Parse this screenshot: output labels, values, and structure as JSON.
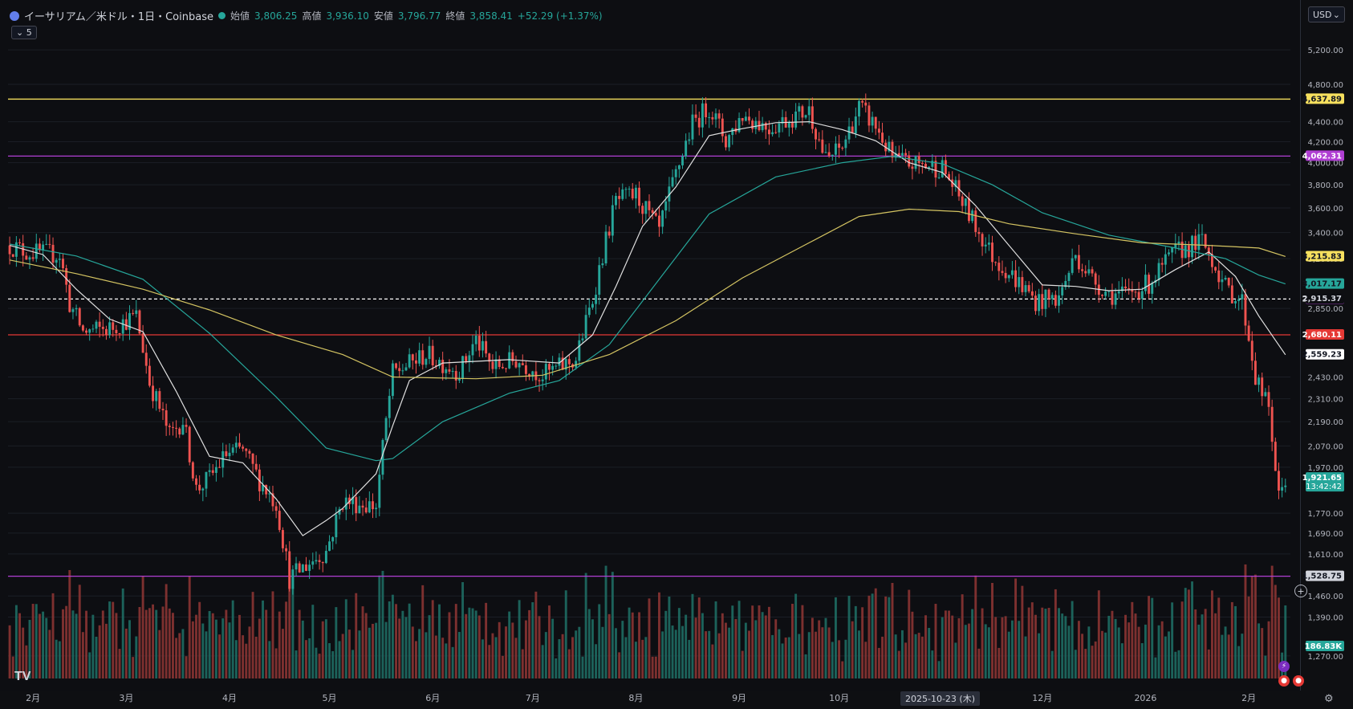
{
  "header": {
    "symbol": "イーサリアム／米ドル・1日・Coinbase",
    "open_label": "始値",
    "open": "3,806.25",
    "high_label": "高値",
    "high": "3,936.10",
    "low_label": "安値",
    "low": "3,796.77",
    "close_label": "終値",
    "close": "3,858.41",
    "change": "+52.29 (+1.37%)",
    "collapse_count": "5"
  },
  "currency": "USD",
  "date_tag": "2025-10-23 (木)",
  "logo": "TV",
  "colors": {
    "up": "#26a69a",
    "down": "#ef5350",
    "background": "#0d0e12",
    "ma_short": "#e0e0e0",
    "ma_mid": "#26a69a",
    "ma_long": "#d4c462",
    "line_yellow": "#f6e05e",
    "line_purple": "#b03fd3",
    "line_red": "#e53935",
    "line_white_dashed": "#ffffff"
  },
  "chart_data": {
    "type": "candlestick",
    "title": "イーサリアム／米ドル・1日・Coinbase",
    "y_scale": "log",
    "ylim": [
      1205,
      5420
    ],
    "y_ticks": [
      "5,200.00",
      "4,800.00",
      "4,400.00",
      "4,200.00",
      "4,000.00",
      "3,800.00",
      "3,600.00",
      "3,400.00",
      "3,200.00",
      "2,850.00",
      "2,430.00",
      "2,310.00",
      "2,190.00",
      "2,070.00",
      "1,970.00",
      "1,770.00",
      "1,690.00",
      "1,610.00",
      "1,460.00",
      "1,390.00",
      "1,270.00"
    ],
    "y_tick_values": [
      5200,
      4800,
      4400,
      4200,
      4000,
      3800,
      3600,
      3400,
      3200,
      2850,
      2430,
      2310,
      2190,
      2070,
      1970,
      1770,
      1690,
      1610,
      1460,
      1390,
      1270
    ],
    "x_labels": [
      "2月",
      "3月",
      "4月",
      "5月",
      "6月",
      "7月",
      "8月",
      "9月",
      "10月",
      "11月",
      "12月",
      "2026",
      "2月"
    ],
    "x_label_days": [
      7,
      35,
      66,
      96,
      127,
      157,
      188,
      219,
      249,
      280,
      310,
      341,
      372
    ],
    "day_count": 385,
    "price_path": [
      [
        0,
        3300
      ],
      [
        5,
        3250
      ],
      [
        15,
        3230
      ],
      [
        18,
        2880
      ],
      [
        22,
        2700
      ],
      [
        30,
        2720
      ],
      [
        38,
        2800
      ],
      [
        42,
        2400
      ],
      [
        48,
        2120
      ],
      [
        52,
        2200
      ],
      [
        56,
        1870
      ],
      [
        60,
        1920
      ],
      [
        65,
        2030
      ],
      [
        70,
        2050
      ],
      [
        75,
        1910
      ],
      [
        80,
        1810
      ],
      [
        84,
        1520
      ],
      [
        88,
        1560
      ],
      [
        95,
        1620
      ],
      [
        100,
        1820
      ],
      [
        110,
        1800
      ],
      [
        115,
        2450
      ],
      [
        125,
        2560
      ],
      [
        135,
        2460
      ],
      [
        140,
        2650
      ],
      [
        145,
        2480
      ],
      [
        152,
        2530
      ],
      [
        160,
        2440
      ],
      [
        170,
        2530
      ],
      [
        175,
        2910
      ],
      [
        182,
        3660
      ],
      [
        188,
        3710
      ],
      [
        195,
        3410
      ],
      [
        205,
        4380
      ],
      [
        210,
        4560
      ],
      [
        215,
        4210
      ],
      [
        220,
        4470
      ],
      [
        228,
        4340
      ],
      [
        235,
        4450
      ],
      [
        240,
        4520
      ],
      [
        245,
        4020
      ],
      [
        250,
        4150
      ],
      [
        255,
        4550
      ],
      [
        260,
        4350
      ],
      [
        265,
        4040
      ],
      [
        270,
        3990
      ],
      [
        275,
        3980
      ],
      [
        280,
        3950
      ],
      [
        285,
        3700
      ],
      [
        290,
        3450
      ],
      [
        295,
        3220
      ],
      [
        302,
        3050
      ],
      [
        308,
        2900
      ],
      [
        315,
        2920
      ],
      [
        320,
        3230
      ],
      [
        325,
        3050
      ],
      [
        330,
        2950
      ],
      [
        335,
        2940
      ],
      [
        342,
        3020
      ],
      [
        350,
        3250
      ],
      [
        358,
        3330
      ],
      [
        362,
        3150
      ],
      [
        365,
        2990
      ],
      [
        370,
        2900
      ],
      [
        374,
        2430
      ],
      [
        378,
        2250
      ],
      [
        381,
        1830
      ],
      [
        383,
        1921
      ]
    ],
    "moving_averages": [
      {
        "key": "ma_short",
        "path": [
          [
            0,
            3300
          ],
          [
            10,
            3230
          ],
          [
            20,
            2980
          ],
          [
            30,
            2780
          ],
          [
            40,
            2700
          ],
          [
            50,
            2350
          ],
          [
            60,
            2020
          ],
          [
            70,
            1990
          ],
          [
            80,
            1830
          ],
          [
            88,
            1680
          ],
          [
            95,
            1740
          ],
          [
            100,
            1790
          ],
          [
            110,
            1940
          ],
          [
            115,
            2170
          ],
          [
            120,
            2410
          ],
          [
            130,
            2510
          ],
          [
            140,
            2520
          ],
          [
            150,
            2530
          ],
          [
            165,
            2510
          ],
          [
            175,
            2680
          ],
          [
            182,
            3000
          ],
          [
            190,
            3450
          ],
          [
            200,
            3780
          ],
          [
            210,
            4260
          ],
          [
            220,
            4330
          ],
          [
            230,
            4390
          ],
          [
            240,
            4400
          ],
          [
            250,
            4320
          ],
          [
            260,
            4210
          ],
          [
            270,
            4000
          ],
          [
            280,
            3910
          ],
          [
            290,
            3620
          ],
          [
            300,
            3300
          ],
          [
            310,
            3010
          ],
          [
            320,
            3000
          ],
          [
            330,
            2970
          ],
          [
            340,
            2980
          ],
          [
            350,
            3120
          ],
          [
            360,
            3250
          ],
          [
            368,
            3070
          ],
          [
            375,
            2800
          ],
          [
            383,
            2559
          ]
        ]
      },
      {
        "key": "ma_mid",
        "path": [
          [
            0,
            3310
          ],
          [
            20,
            3220
          ],
          [
            40,
            3050
          ],
          [
            60,
            2690
          ],
          [
            80,
            2320
          ],
          [
            95,
            2060
          ],
          [
            110,
            2000
          ],
          [
            115,
            2010
          ],
          [
            130,
            2190
          ],
          [
            150,
            2340
          ],
          [
            165,
            2410
          ],
          [
            180,
            2620
          ],
          [
            195,
            3050
          ],
          [
            210,
            3550
          ],
          [
            230,
            3870
          ],
          [
            250,
            4000
          ],
          [
            265,
            4060
          ],
          [
            280,
            3990
          ],
          [
            295,
            3800
          ],
          [
            310,
            3560
          ],
          [
            330,
            3380
          ],
          [
            350,
            3280
          ],
          [
            365,
            3200
          ],
          [
            375,
            3080
          ],
          [
            383,
            3017
          ]
        ]
      },
      {
        "key": "ma_long",
        "path": [
          [
            0,
            3190
          ],
          [
            20,
            3090
          ],
          [
            40,
            2980
          ],
          [
            60,
            2840
          ],
          [
            80,
            2680
          ],
          [
            100,
            2560
          ],
          [
            115,
            2430
          ],
          [
            140,
            2420
          ],
          [
            160,
            2440
          ],
          [
            180,
            2560
          ],
          [
            200,
            2770
          ],
          [
            220,
            3060
          ],
          [
            240,
            3320
          ],
          [
            255,
            3530
          ],
          [
            270,
            3590
          ],
          [
            285,
            3570
          ],
          [
            300,
            3470
          ],
          [
            320,
            3390
          ],
          [
            340,
            3320
          ],
          [
            360,
            3300
          ],
          [
            375,
            3280
          ],
          [
            383,
            3216
          ]
        ]
      }
    ],
    "horizontal_lines": [
      {
        "price": 4637.89,
        "label": "4,637.89",
        "color": "line_yellow",
        "style": "solid"
      },
      {
        "price": 4062.31,
        "label": "4,062.31",
        "color": "line_purple",
        "style": "solid"
      },
      {
        "price": 2913.29,
        "label": "2,913.29",
        "color": "line_purple",
        "style": "dashed-white"
      },
      {
        "price": 2680.11,
        "label": "2,680.11",
        "color": "line_red",
        "style": "solid"
      },
      {
        "price": 1528.75,
        "label": "1,528.75",
        "color": "line_purple",
        "style": "solid"
      }
    ],
    "price_tags": [
      {
        "price": 3215.83,
        "label": "3,215.83",
        "bg": "#f6e05e",
        "fg": "#131722"
      },
      {
        "price": 3017.17,
        "label": "3,017.17",
        "bg": "#26a69a",
        "fg": "#131722"
      },
      {
        "price": 2915.37,
        "label": "2,915.37",
        "bg": "#0d0e12",
        "fg": "#d1d4dc"
      },
      {
        "price": 2559.23,
        "label": "2,559.23",
        "bg": "#ffffff",
        "fg": "#131722"
      },
      {
        "price": 1921.65,
        "label": "1,921.65",
        "bg": "#26a69a",
        "fg": "#ffffff",
        "sub": "13:42:42"
      }
    ],
    "volume_tag": {
      "label": "186.83K",
      "bg": "#26a69a"
    }
  }
}
